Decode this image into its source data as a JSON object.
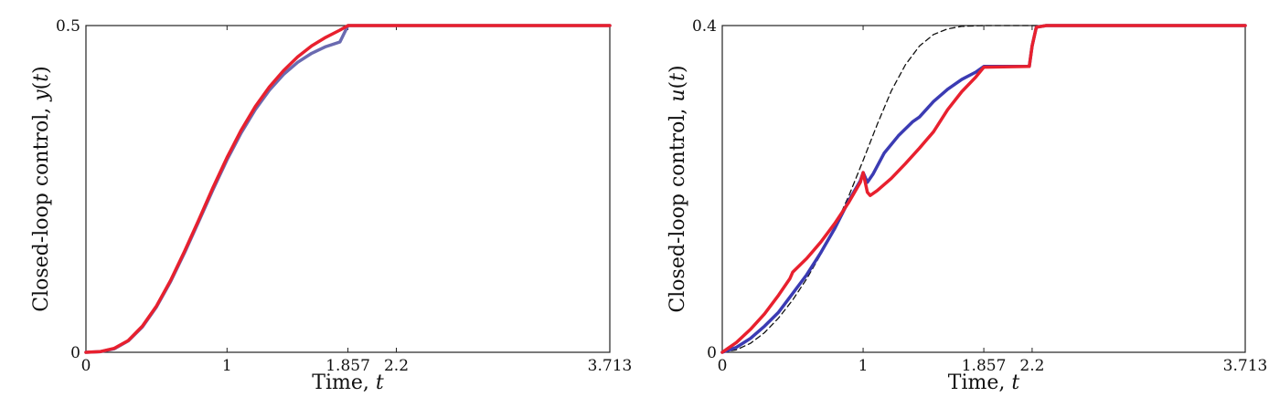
{
  "chart_data": [
    {
      "type": "line",
      "title": "",
      "xlabel": "Time, t",
      "ylabel": "Closed-loop control, y(t)",
      "xlim": [
        0,
        3.713
      ],
      "ylim": [
        0,
        0.5
      ],
      "x_ticks": [
        0,
        1,
        1.857,
        2.2,
        3.713
      ],
      "x_tick_labels": [
        "0",
        "1",
        "1.857",
        "2.2",
        "3.713"
      ],
      "y_ticks": [
        0,
        0.5
      ],
      "y_tick_labels": [
        "0",
        "0.5"
      ],
      "grid": false,
      "legend": "none",
      "series": [
        {
          "color": "#6a6ab0",
          "style": "solid",
          "x": [
            0,
            0.1,
            0.2,
            0.3,
            0.4,
            0.5,
            0.6,
            0.7,
            0.8,
            0.9,
            1.0,
            1.1,
            1.2,
            1.3,
            1.4,
            1.5,
            1.6,
            1.7,
            1.8,
            1.857,
            2.2,
            3.713
          ],
          "values": [
            0,
            0.0008,
            0.0053,
            0.0175,
            0.0388,
            0.0695,
            0.1083,
            0.1528,
            0.2005,
            0.2487,
            0.2945,
            0.3357,
            0.3713,
            0.4011,
            0.4251,
            0.4437,
            0.4576,
            0.4677,
            0.4748,
            0.5,
            0.5,
            0.5
          ]
        },
        {
          "color": "#e8202e",
          "style": "solid",
          "x": [
            0,
            0.1,
            0.2,
            0.3,
            0.4,
            0.5,
            0.6,
            0.7,
            0.8,
            0.9,
            1.0,
            1.1,
            1.2,
            1.3,
            1.4,
            1.5,
            1.6,
            1.7,
            1.8,
            1.857,
            2.2,
            3.713
          ],
          "values": [
            0,
            0.001,
            0.006,
            0.018,
            0.04,
            0.071,
            0.11,
            0.155,
            0.203,
            0.252,
            0.298,
            0.34,
            0.376,
            0.406,
            0.431,
            0.452,
            0.469,
            0.482,
            0.493,
            0.5,
            0.5,
            0.5
          ]
        }
      ]
    },
    {
      "type": "line",
      "title": "",
      "xlabel": "Time, t",
      "ylabel": "Closed-loop control, u(t)",
      "xlim": [
        0,
        3.713
      ],
      "ylim": [
        0,
        0.4
      ],
      "x_ticks": [
        0,
        1,
        1.857,
        2.2,
        3.713
      ],
      "x_tick_labels": [
        "0",
        "1",
        "1.857",
        "2.2",
        "3.713"
      ],
      "y_ticks": [
        0,
        0.4
      ],
      "y_tick_labels": [
        "0",
        "0.4"
      ],
      "grid": false,
      "legend": "none",
      "series": [
        {
          "color": "#111111",
          "style": "dashed",
          "x": [
            0,
            0.1,
            0.2,
            0.3,
            0.4,
            0.5,
            0.6,
            0.7,
            0.8,
            0.9,
            1.0,
            1.1,
            1.2,
            1.3,
            1.4,
            1.5,
            1.6,
            1.7,
            1.857,
            2.2,
            3.713
          ],
          "values": [
            0,
            0.003,
            0.011,
            0.024,
            0.042,
            0.064,
            0.09,
            0.12,
            0.154,
            0.192,
            0.235,
            0.279,
            0.32,
            0.352,
            0.375,
            0.389,
            0.396,
            0.399,
            0.4,
            0.4,
            0.4
          ]
        },
        {
          "color": "#3b3bb3",
          "style": "solid",
          "x": [
            0,
            0.1,
            0.2,
            0.3,
            0.4,
            0.5,
            0.6,
            0.7,
            0.8,
            0.9,
            0.98,
            1.0,
            1.03,
            1.07,
            1.15,
            1.25,
            1.35,
            1.4,
            1.5,
            1.6,
            1.7,
            1.8,
            1.857,
            2.18,
            2.2,
            2.23,
            2.3,
            3.713
          ],
          "values": [
            0,
            0.006,
            0.017,
            0.032,
            0.049,
            0.072,
            0.095,
            0.122,
            0.152,
            0.186,
            0.21,
            0.22,
            0.208,
            0.218,
            0.244,
            0.265,
            0.282,
            0.288,
            0.307,
            0.322,
            0.334,
            0.343,
            0.35,
            0.35,
            0.375,
            0.398,
            0.4,
            0.4
          ]
        },
        {
          "color": "#e8202e",
          "style": "solid",
          "x": [
            0,
            0.1,
            0.2,
            0.3,
            0.4,
            0.48,
            0.5,
            0.6,
            0.7,
            0.8,
            0.9,
            0.98,
            1.0,
            1.03,
            1.05,
            1.1,
            1.2,
            1.3,
            1.4,
            1.5,
            1.6,
            1.7,
            1.8,
            1.857,
            2.18,
            2.2,
            2.23,
            2.3,
            3.713
          ],
          "values": [
            0,
            0.012,
            0.028,
            0.047,
            0.07,
            0.09,
            0.098,
            0.115,
            0.135,
            0.158,
            0.184,
            0.208,
            0.22,
            0.196,
            0.192,
            0.198,
            0.213,
            0.231,
            0.25,
            0.27,
            0.297,
            0.319,
            0.337,
            0.349,
            0.35,
            0.375,
            0.398,
            0.4,
            0.4
          ]
        }
      ]
    }
  ]
}
